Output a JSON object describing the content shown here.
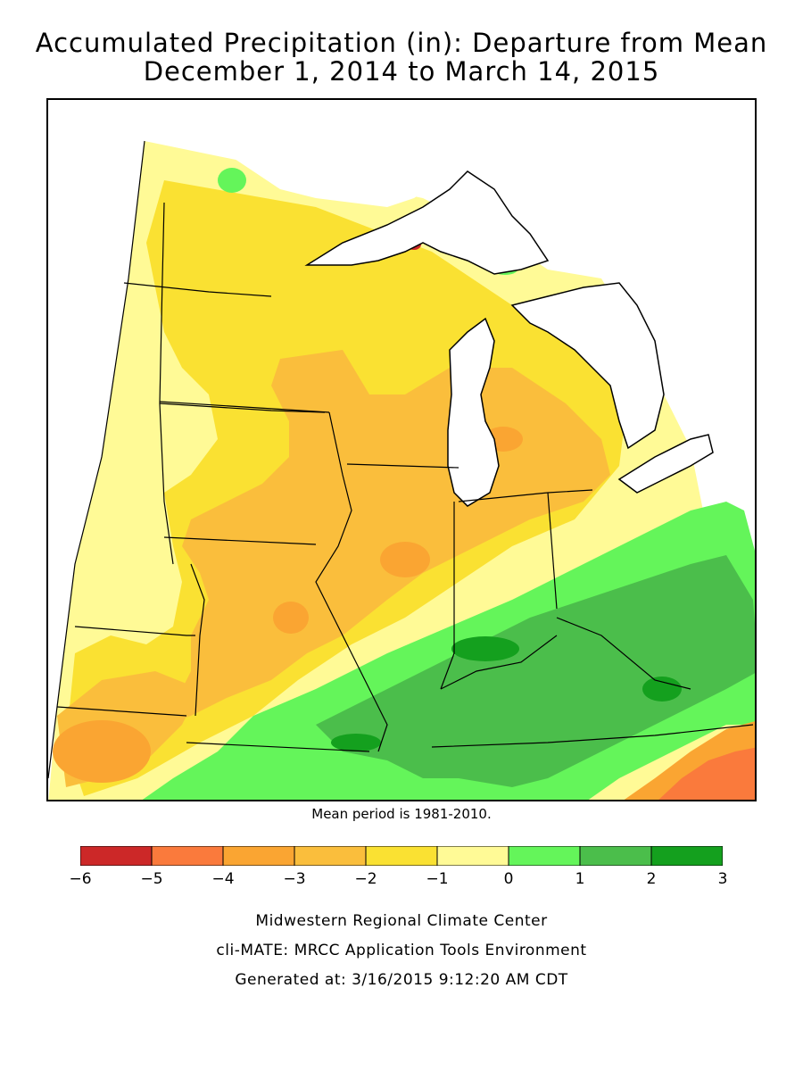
{
  "title": {
    "line1": "Accumulated Precipitation (in): Departure from Mean",
    "line2": "December 1, 2014 to March 14, 2015"
  },
  "mean_note": "Mean period is 1981-2010.",
  "legend": {
    "ticks": [
      "−6",
      "−5",
      "−4",
      "−3",
      "−2",
      "−1",
      "0",
      "1",
      "2",
      "3"
    ],
    "bins": [
      {
        "range": [
          -6,
          -5
        ],
        "color": "#cc2828"
      },
      {
        "range": [
          -5,
          -4
        ],
        "color": "#fa7a3c"
      },
      {
        "range": [
          -4,
          -3
        ],
        "color": "#faa532"
      },
      {
        "range": [
          -3,
          -2
        ],
        "color": "#fabe3c"
      },
      {
        "range": [
          -2,
          -1
        ],
        "color": "#fae132"
      },
      {
        "range": [
          -1,
          0
        ],
        "color": "#fffa96"
      },
      {
        "range": [
          0,
          1
        ],
        "color": "#64f55a"
      },
      {
        "range": [
          1,
          2
        ],
        "color": "#4bbe4b"
      },
      {
        "range": [
          2,
          3
        ],
        "color": "#14a01e"
      }
    ]
  },
  "credits": {
    "line1": "Midwestern Regional Climate Center",
    "line2": "cli-MATE: MRCC Application Tools Environment",
    "line3": "Generated at: 3/16/2015 9:12:20 AM CDT"
  },
  "colors": {
    "water": "#ffffff",
    "border": "#000000"
  }
}
